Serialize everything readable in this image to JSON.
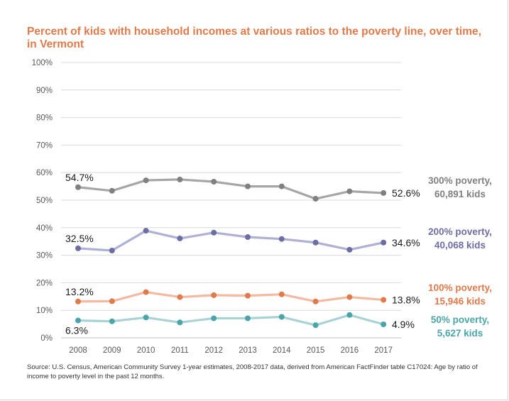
{
  "chart_data": {
    "type": "line",
    "title": "Percent of kids with household incomes at various ratios to the poverty line, over time, in Vermont",
    "x": [
      "2008",
      "2009",
      "2010",
      "2011",
      "2012",
      "2013",
      "2014",
      "2015",
      "2016",
      "2017"
    ],
    "yticks": [
      "0%",
      "10%",
      "20%",
      "30%",
      "40%",
      "50%",
      "60%",
      "70%",
      "80%",
      "90%",
      "100%"
    ],
    "ylim": [
      0,
      100
    ],
    "grid": true,
    "series": [
      {
        "name": "300% poverty,",
        "sub": "60,891 kids",
        "color": "#808080",
        "lineColor": "#a6a6a6",
        "values": [
          54.7,
          53.4,
          57.2,
          57.5,
          56.7,
          55.0,
          55.0,
          50.5,
          53.2,
          52.6
        ],
        "first_label": "54.7%",
        "last_label": "52.6%"
      },
      {
        "name": "200% poverty,",
        "sub": "40,068 kids",
        "color": "#6c6ea3",
        "lineColor": "#aeb0d6",
        "values": [
          32.5,
          31.7,
          38.9,
          36.1,
          38.2,
          36.6,
          35.9,
          34.6,
          32.0,
          34.6
        ],
        "first_label": "32.5%",
        "last_label": "34.6%"
      },
      {
        "name": "100% poverty,",
        "sub": "15,946 kids",
        "color": "#e07a4a",
        "lineColor": "#f4b9a0",
        "values": [
          13.2,
          13.3,
          16.6,
          14.8,
          15.5,
          15.3,
          15.8,
          13.2,
          14.8,
          13.8
        ],
        "first_label": "13.2%",
        "last_label": "13.8%"
      },
      {
        "name": "50% poverty,",
        "sub": "5,627 kids",
        "color": "#4aa5aa",
        "lineColor": "#a9d2d5",
        "values": [
          6.3,
          6.0,
          7.4,
          5.6,
          7.1,
          7.1,
          7.6,
          4.6,
          8.3,
          4.9
        ],
        "first_label": "6.3%",
        "last_label": "4.9%"
      }
    ]
  },
  "source_text": "Source: U.S. Census, American Community Survey 1-year estimates, 2008-2017 data, derived from American FactFinder table C17024: Age by ratio of income to poverty level in the past 12 months."
}
